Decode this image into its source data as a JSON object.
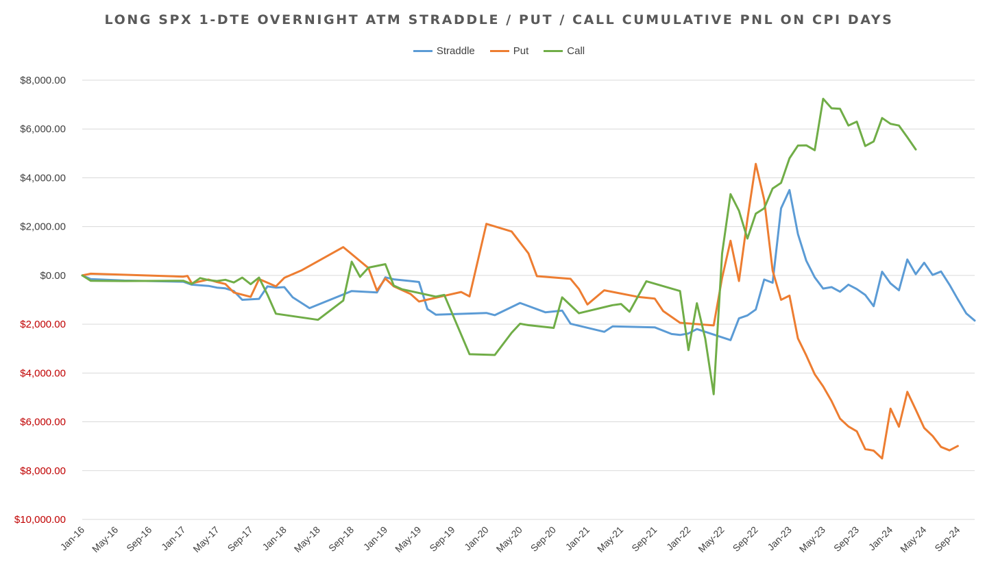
{
  "chart_data": {
    "type": "line",
    "title": "LONG SPX 1-DTE OVERNIGHT ATM STRADDLE / PUT / CALL CUMULATIVE PNL ON CPI DAYS",
    "xlabel": "",
    "ylabel": "",
    "ylim": [
      -10000,
      8000
    ],
    "y_ticks": [
      8000,
      6000,
      4000,
      2000,
      0,
      -2000,
      -4000,
      -6000,
      -8000,
      -10000
    ],
    "y_tick_labels": [
      "$8,000.00",
      "$6,000.00",
      "$4,000.00",
      "$2,000.00",
      "$0.00",
      "$2,000.00",
      "$4,000.00",
      "$6,000.00",
      "$8,000.00",
      "$10,000.00"
    ],
    "positive_label_color": "#404040",
    "negative_label_color": "#c00000",
    "x_tick_labels": [
      "Jan-16",
      "May-16",
      "Sep-16",
      "Jan-17",
      "May-17",
      "Sep-17",
      "Jan-18",
      "May-18",
      "Sep-18",
      "Jan-19",
      "May-19",
      "Sep-19",
      "Jan-20",
      "May-20",
      "Sep-20",
      "Jan-21",
      "May-21",
      "Sep-21",
      "Jan-22",
      "May-22",
      "Sep-22",
      "Jan-23",
      "May-23",
      "Sep-23",
      "Jan-24",
      "May-24",
      "Sep-24"
    ],
    "x_range_months": [
      0,
      106
    ],
    "x_unit": "months since Jan-16",
    "grid": true,
    "legend_position": "top",
    "series": [
      {
        "name": "Straddle",
        "color": "#5b9bd5",
        "points": [
          [
            0,
            0
          ],
          [
            1,
            -150
          ],
          [
            5,
            -210
          ],
          [
            12,
            -260
          ],
          [
            13,
            -380
          ],
          [
            15,
            -430
          ],
          [
            16,
            -500
          ],
          [
            17,
            -530
          ],
          [
            18,
            -640
          ],
          [
            19,
            -1000
          ],
          [
            21,
            -960
          ],
          [
            22,
            -450
          ],
          [
            23,
            -500
          ],
          [
            24,
            -480
          ],
          [
            25,
            -900
          ],
          [
            27,
            -1340
          ],
          [
            32,
            -640
          ],
          [
            35,
            -700
          ],
          [
            36,
            -80
          ],
          [
            37,
            -160
          ],
          [
            39,
            -230
          ],
          [
            40,
            -270
          ],
          [
            41,
            -1380
          ],
          [
            42,
            -1610
          ],
          [
            48,
            -1540
          ],
          [
            49,
            -1630
          ],
          [
            52,
            -1130
          ],
          [
            55,
            -1510
          ],
          [
            57,
            -1440
          ],
          [
            58,
            -1980
          ],
          [
            62,
            -2310
          ],
          [
            63,
            -2090
          ],
          [
            68,
            -2130
          ],
          [
            70,
            -2400
          ],
          [
            71,
            -2440
          ],
          [
            72,
            -2380
          ],
          [
            73,
            -2200
          ],
          [
            77,
            -2650
          ],
          [
            78,
            -1760
          ],
          [
            79,
            -1640
          ],
          [
            80,
            -1400
          ],
          [
            81,
            -170
          ],
          [
            82,
            -300
          ],
          [
            83,
            2750
          ],
          [
            84,
            3500
          ],
          [
            85,
            1700
          ],
          [
            86,
            600
          ],
          [
            87,
            -80
          ],
          [
            88,
            -540
          ],
          [
            89,
            -480
          ],
          [
            90,
            -670
          ],
          [
            91,
            -380
          ],
          [
            92,
            -560
          ],
          [
            93,
            -800
          ],
          [
            94,
            -1260
          ],
          [
            95,
            150
          ],
          [
            96,
            -330
          ],
          [
            97,
            -610
          ],
          [
            98,
            650
          ],
          [
            99,
            50
          ],
          [
            100,
            520
          ],
          [
            101,
            20
          ],
          [
            102,
            160
          ],
          [
            103,
            -380
          ],
          [
            104,
            -980
          ],
          [
            105,
            -1560
          ],
          [
            106,
            -1850
          ]
        ]
      },
      {
        "name": "Put",
        "color": "#ed7d31",
        "points": [
          [
            0,
            0
          ],
          [
            1,
            70
          ],
          [
            12,
            -50
          ],
          [
            12.5,
            -20
          ],
          [
            13,
            -320
          ],
          [
            15,
            -170
          ],
          [
            16,
            -270
          ],
          [
            17,
            -350
          ],
          [
            18,
            -700
          ],
          [
            20,
            -880
          ],
          [
            21,
            -150
          ],
          [
            23,
            -450
          ],
          [
            24,
            -100
          ],
          [
            26,
            200
          ],
          [
            31,
            1160
          ],
          [
            34,
            300
          ],
          [
            35,
            -620
          ],
          [
            36,
            -130
          ],
          [
            37,
            -450
          ],
          [
            39,
            -760
          ],
          [
            40,
            -1070
          ],
          [
            45,
            -680
          ],
          [
            46,
            -860
          ],
          [
            48,
            2110
          ],
          [
            51,
            1800
          ],
          [
            53,
            900
          ],
          [
            54,
            -30
          ],
          [
            58,
            -140
          ],
          [
            59,
            -560
          ],
          [
            60,
            -1190
          ],
          [
            62,
            -610
          ],
          [
            66,
            -880
          ],
          [
            68,
            -950
          ],
          [
            69,
            -1460
          ],
          [
            71,
            -1940
          ],
          [
            75,
            -2050
          ],
          [
            76,
            -100
          ],
          [
            77,
            1420
          ],
          [
            78,
            -230
          ],
          [
            79,
            2300
          ],
          [
            80,
            4570
          ],
          [
            81,
            3100
          ],
          [
            82,
            200
          ],
          [
            83,
            -1000
          ],
          [
            84,
            -830
          ],
          [
            85,
            -2580
          ],
          [
            86,
            -3280
          ],
          [
            87,
            -4050
          ],
          [
            88,
            -4550
          ],
          [
            89,
            -5150
          ],
          [
            90,
            -5870
          ],
          [
            91,
            -6190
          ],
          [
            92,
            -6390
          ],
          [
            93,
            -7120
          ],
          [
            94,
            -7180
          ],
          [
            95,
            -7500
          ],
          [
            96,
            -5460
          ],
          [
            97,
            -6200
          ],
          [
            98,
            -4770
          ],
          [
            99,
            -5500
          ],
          [
            100,
            -6250
          ],
          [
            101,
            -6580
          ],
          [
            102,
            -7030
          ],
          [
            103,
            -7170
          ],
          [
            104,
            -6990
          ]
        ]
      },
      {
        "name": "Call",
        "color": "#70ad47",
        "points": [
          [
            0,
            0
          ],
          [
            1,
            -220
          ],
          [
            5,
            -230
          ],
          [
            12,
            -220
          ],
          [
            13,
            -350
          ],
          [
            14,
            -110
          ],
          [
            15,
            -190
          ],
          [
            16,
            -230
          ],
          [
            17,
            -180
          ],
          [
            18,
            -290
          ],
          [
            19,
            -90
          ],
          [
            20,
            -360
          ],
          [
            21,
            -90
          ],
          [
            22,
            -790
          ],
          [
            23,
            -1570
          ],
          [
            28,
            -1820
          ],
          [
            31,
            -1030
          ],
          [
            32,
            560
          ],
          [
            33,
            -60
          ],
          [
            34,
            320
          ],
          [
            36,
            460
          ],
          [
            37,
            -420
          ],
          [
            38,
            -570
          ],
          [
            42,
            -870
          ],
          [
            43,
            -800
          ],
          [
            46,
            -3230
          ],
          [
            49,
            -3260
          ],
          [
            51,
            -2350
          ],
          [
            52,
            -1980
          ],
          [
            53,
            -2040
          ],
          [
            56,
            -2150
          ],
          [
            57,
            -900
          ],
          [
            59,
            -1550
          ],
          [
            63,
            -1220
          ],
          [
            64,
            -1170
          ],
          [
            65,
            -1490
          ],
          [
            67,
            -240
          ],
          [
            71,
            -640
          ],
          [
            72,
            -3060
          ],
          [
            73,
            -1140
          ],
          [
            74,
            -2590
          ],
          [
            75,
            -4870
          ],
          [
            76,
            900
          ],
          [
            77,
            3330
          ],
          [
            78,
            2650
          ],
          [
            79,
            1510
          ],
          [
            80,
            2530
          ],
          [
            81,
            2750
          ],
          [
            82,
            3560
          ],
          [
            83,
            3790
          ],
          [
            84,
            4800
          ],
          [
            85,
            5320
          ],
          [
            86,
            5330
          ],
          [
            87,
            5130
          ],
          [
            88,
            7240
          ],
          [
            89,
            6850
          ],
          [
            90,
            6830
          ],
          [
            91,
            6140
          ],
          [
            92,
            6300
          ],
          [
            93,
            5300
          ],
          [
            94,
            5490
          ],
          [
            95,
            6450
          ],
          [
            96,
            6210
          ],
          [
            97,
            6140
          ],
          [
            98,
            5660
          ],
          [
            99,
            5160
          ]
        ]
      }
    ]
  }
}
